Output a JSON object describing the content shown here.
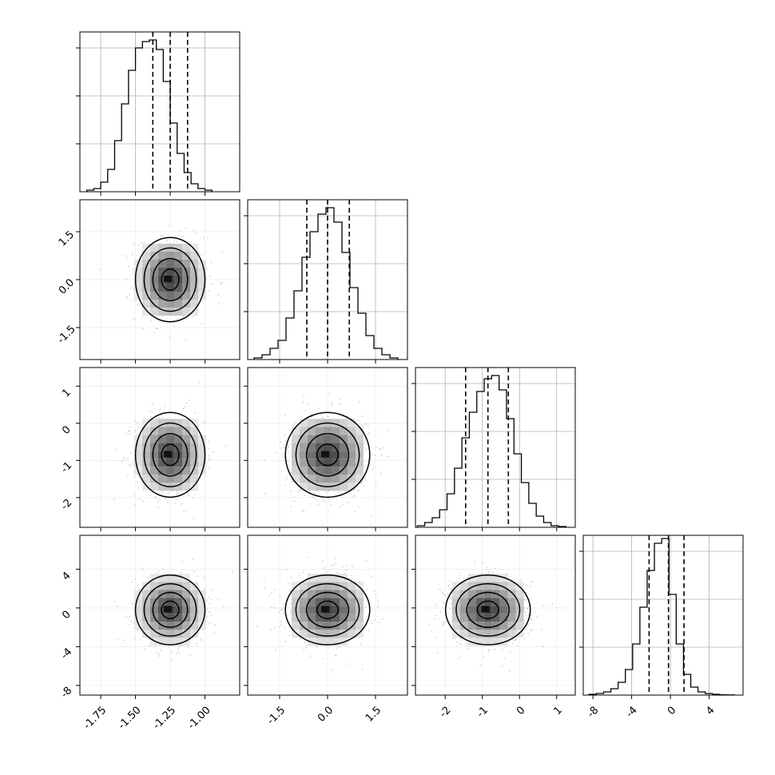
{
  "chart_data": {
    "type": "corner",
    "variables": [
      {
        "range": [
          -1.9,
          -0.75
        ],
        "ticks": [
          "-1.75",
          "-1.50",
          "-1.25",
          "-1.00"
        ],
        "tick_values": [
          -1.75,
          -1.5,
          -1.25,
          -1.0
        ],
        "quantiles": [
          -1.375,
          -1.25,
          -1.125
        ],
        "histogram": {
          "edges_start": -1.85,
          "bin_width": 0.05,
          "counts": [
            0.01,
            0.02,
            0.06,
            0.14,
            0.32,
            0.55,
            0.76,
            0.9,
            0.94,
            0.95,
            0.89,
            0.69,
            0.43,
            0.24,
            0.12,
            0.05,
            0.02,
            0.01
          ],
          "ymax": 1.0,
          "yticks": [
            0.3,
            0.6,
            0.9
          ]
        }
      },
      {
        "range": [
          -2.5,
          2.5
        ],
        "ticks": [
          "-1.5",
          "0.0",
          "1.5"
        ],
        "tick_values": [
          -1.5,
          0.0,
          1.5
        ],
        "quantiles": [
          -0.65,
          0.0,
          0.68
        ],
        "histogram": {
          "edges_start": -2.3,
          "bin_width": 0.25,
          "counts": [
            0.01,
            0.03,
            0.07,
            0.12,
            0.26,
            0.43,
            0.64,
            0.8,
            0.91,
            0.95,
            0.86,
            0.67,
            0.45,
            0.29,
            0.15,
            0.07,
            0.03,
            0.01
          ],
          "ymax": 1.0,
          "yticks": [
            0.3,
            0.6,
            0.9
          ]
        }
      },
      {
        "range": [
          -2.8,
          1.5
        ],
        "ticks": [
          "-2",
          "-1",
          "0",
          "1"
        ],
        "tick_values": [
          -2,
          -1,
          0,
          1
        ],
        "quantiles": [
          -1.45,
          -0.85,
          -0.3
        ],
        "histogram": {
          "edges_start": -2.75,
          "bin_width": 0.2,
          "counts": [
            0.01,
            0.03,
            0.06,
            0.11,
            0.21,
            0.37,
            0.56,
            0.72,
            0.85,
            0.93,
            0.95,
            0.86,
            0.68,
            0.46,
            0.28,
            0.15,
            0.07,
            0.03,
            0.01,
            0.005
          ],
          "ymax": 1.0,
          "yticks": [
            0.3,
            0.6,
            0.9
          ]
        }
      },
      {
        "range": [
          -9.0,
          7.5
        ],
        "ticks": [
          "-8",
          "-4",
          "0",
          "4"
        ],
        "tick_values": [
          -8,
          -4,
          0,
          4
        ],
        "quantiles": [
          -2.2,
          -0.2,
          1.4
        ],
        "histogram": {
          "edges_start": -8.4,
          "bin_width": 0.75,
          "counts": [
            0.005,
            0.01,
            0.02,
            0.04,
            0.08,
            0.16,
            0.32,
            0.55,
            0.78,
            0.95,
            0.98,
            0.63,
            0.32,
            0.13,
            0.05,
            0.02,
            0.01,
            0.005,
            0.002,
            0.001
          ],
          "ymax": 1.0,
          "yticks": [
            0.3,
            0.6,
            0.9
          ]
        }
      }
    ],
    "pairs": [
      {
        "row": 1,
        "col": 0,
        "center": [
          -1.25,
          0.0
        ],
        "sigma": [
          0.125,
          0.66
        ]
      },
      {
        "row": 2,
        "col": 0,
        "center": [
          -1.25,
          -0.85
        ],
        "sigma": [
          0.125,
          0.57
        ]
      },
      {
        "row": 2,
        "col": 1,
        "center": [
          0.0,
          -0.85
        ],
        "sigma": [
          0.66,
          0.57
        ]
      },
      {
        "row": 3,
        "col": 0,
        "center": [
          -1.25,
          -0.2
        ],
        "sigma": [
          0.125,
          1.8
        ]
      },
      {
        "row": 3,
        "col": 1,
        "center": [
          0.0,
          -0.2
        ],
        "sigma": [
          0.66,
          1.8
        ]
      },
      {
        "row": 3,
        "col": 2,
        "center": [
          -0.85,
          -0.2
        ],
        "sigma": [
          0.57,
          1.8
        ]
      }
    ],
    "contour_levels_sigma": [
      0.5,
      1.0,
      1.5,
      2.0
    ],
    "grid": true,
    "colors": {
      "hist_line": "#000000",
      "quantile_line": "#000000",
      "density": "#000000",
      "grid": "#b0b0b0",
      "scatter": "#808080"
    }
  }
}
